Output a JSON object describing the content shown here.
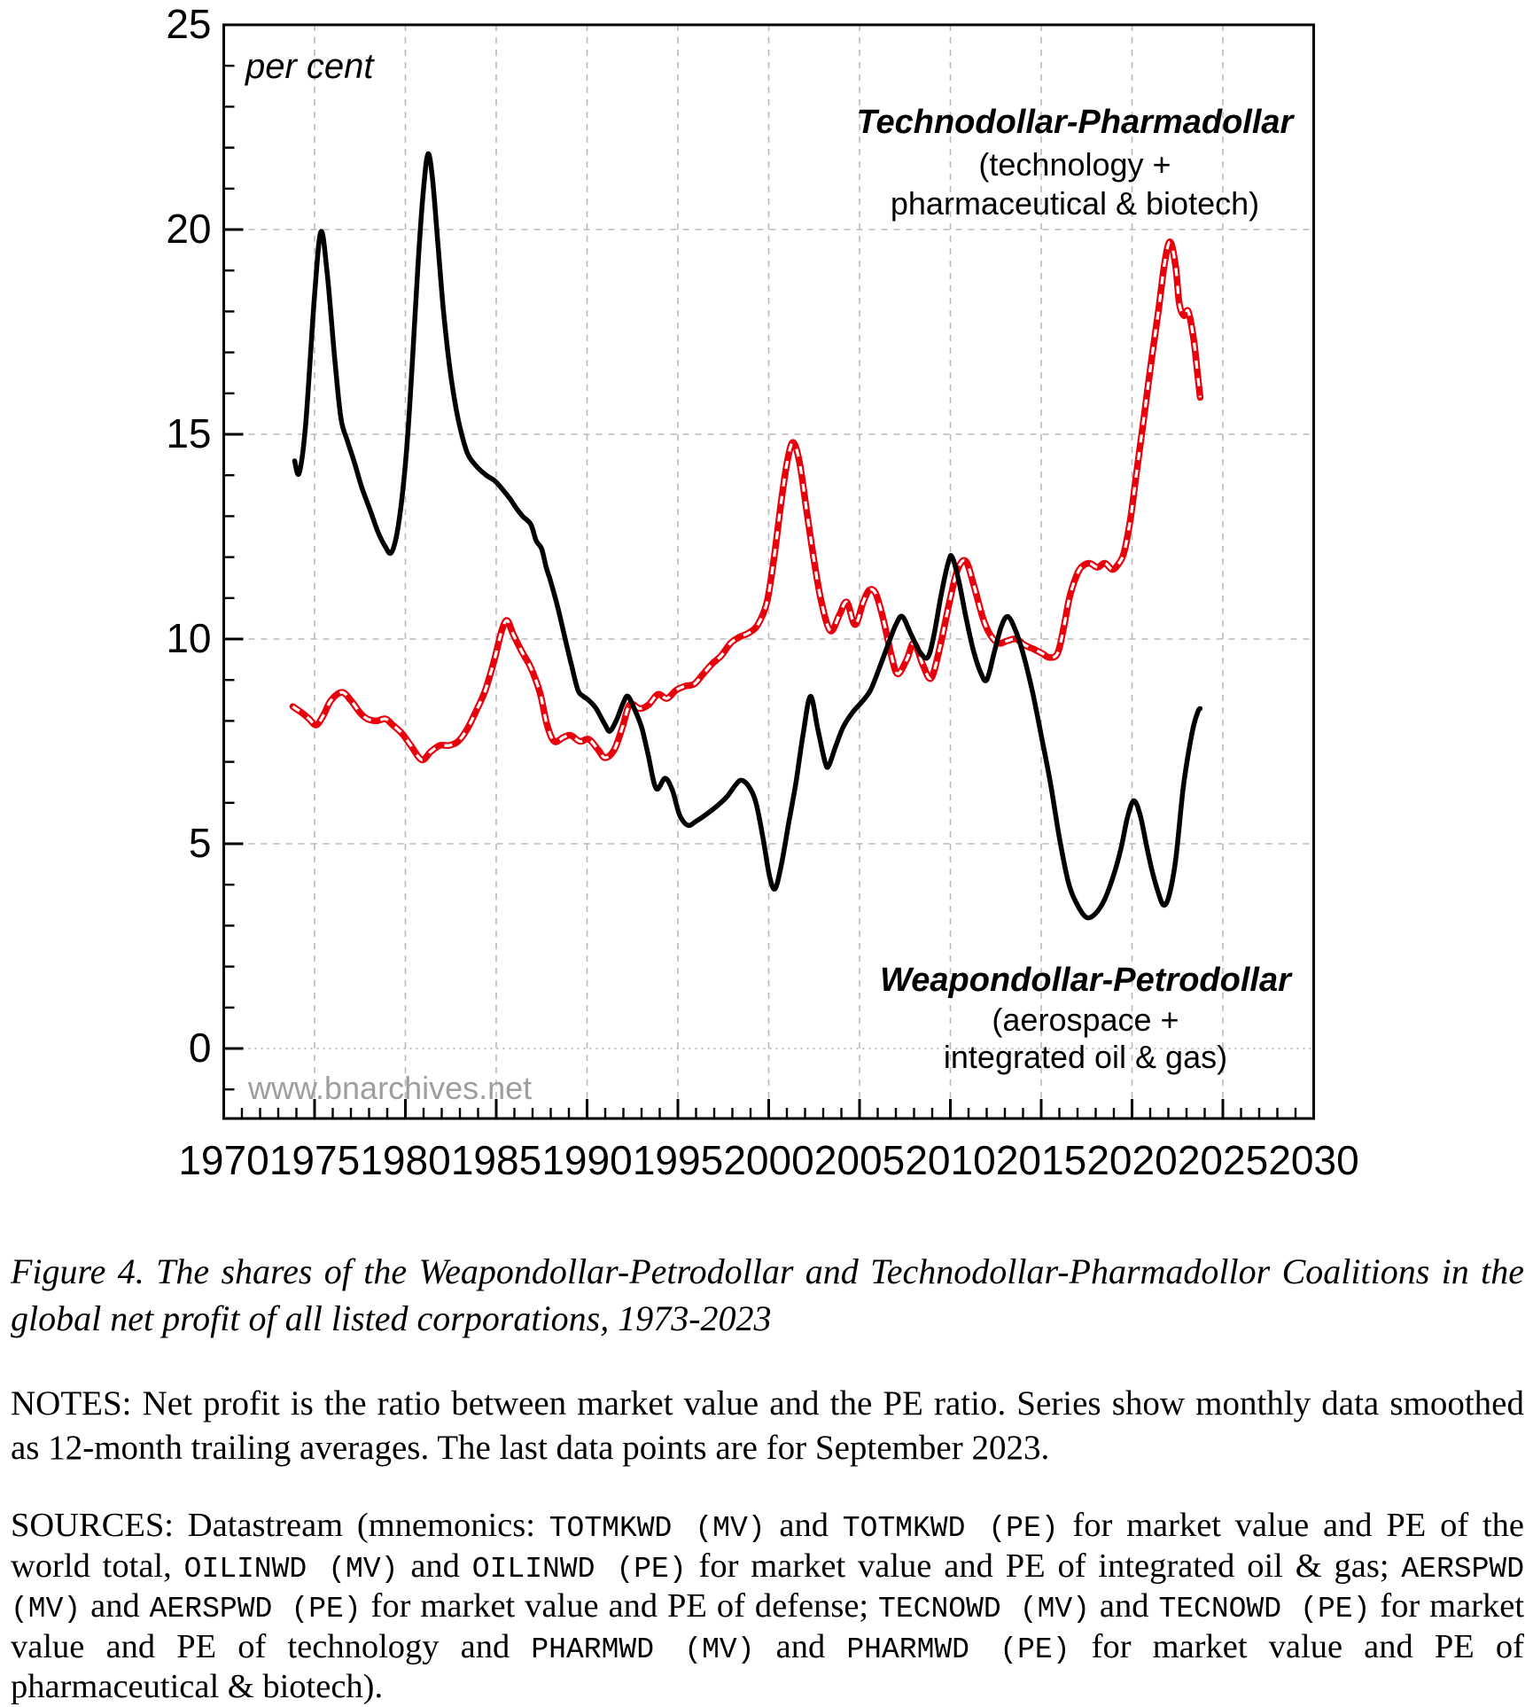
{
  "chart_data": {
    "type": "line",
    "unit_label": "per cent",
    "watermark": "www.bnarchives.net",
    "grid": true,
    "legend_position": "inline-annotations",
    "x_axis": {
      "min": 1970,
      "max": 2030,
      "major_tick_step": 5,
      "minor_tick_step": 1,
      "tick_labels": [
        "1970",
        "1975",
        "1980",
        "1985",
        "1990",
        "1995",
        "2000",
        "2005",
        "2010",
        "2015",
        "2020",
        "2025",
        "2030"
      ]
    },
    "y_axis": {
      "min": -1.7,
      "max": 25,
      "major_tick_step": 5,
      "minor_tick_step": 1,
      "tick_labels": [
        "0",
        "5",
        "10",
        "15",
        "20",
        "25"
      ],
      "tick_values": [
        0,
        5,
        10,
        15,
        20,
        25
      ]
    },
    "colors": {
      "weapondollar": "#000000",
      "technodollar": "#e8000b",
      "grid": "#b9b9b9",
      "zero_line": "#aaaaaa",
      "watermark": "#9e9e9e"
    },
    "annotations": [
      {
        "id": "technodollar-label",
        "x": 1213,
        "baselines": [
          150,
          198,
          242
        ],
        "lines": [
          "Technodollar-Pharmadollar",
          "(technology +",
          "pharmaceutical & biotech)"
        ]
      },
      {
        "id": "weapondollar-label",
        "x": 1225,
        "baselines": [
          1118,
          1163,
          1205
        ],
        "lines": [
          "Weapondollar-Petrodollar",
          "(aerospace +",
          "integrated oil & gas)"
        ]
      }
    ],
    "series": [
      {
        "name": "Weapondollar-Petrodollar (aerospace + integrated oil & gas)",
        "style": "solid-black",
        "points": [
          [
            1973.9,
            14.35
          ],
          [
            1974.15,
            14.05
          ],
          [
            1974.5,
            15.2
          ],
          [
            1975.0,
            18.4
          ],
          [
            1975.35,
            19.95
          ],
          [
            1975.7,
            18.9
          ],
          [
            1976.1,
            16.9
          ],
          [
            1976.45,
            15.4
          ],
          [
            1976.8,
            14.85
          ],
          [
            1977.2,
            14.3
          ],
          [
            1977.6,
            13.7
          ],
          [
            1978.1,
            13.1
          ],
          [
            1978.5,
            12.6
          ],
          [
            1978.9,
            12.25
          ],
          [
            1979.2,
            12.1
          ],
          [
            1979.5,
            12.5
          ],
          [
            1979.8,
            13.4
          ],
          [
            1980.1,
            14.8
          ],
          [
            1980.4,
            16.9
          ],
          [
            1980.7,
            19.2
          ],
          [
            1981.0,
            21.0
          ],
          [
            1981.25,
            21.85
          ],
          [
            1981.5,
            21.2
          ],
          [
            1981.8,
            19.6
          ],
          [
            1982.1,
            18.0
          ],
          [
            1982.45,
            16.6
          ],
          [
            1982.8,
            15.6
          ],
          [
            1983.1,
            15.0
          ],
          [
            1983.45,
            14.5
          ],
          [
            1983.95,
            14.2
          ],
          [
            1984.45,
            14.0
          ],
          [
            1984.95,
            13.85
          ],
          [
            1985.45,
            13.6
          ],
          [
            1985.8,
            13.4
          ],
          [
            1986.1,
            13.2
          ],
          [
            1986.45,
            13.0
          ],
          [
            1986.9,
            12.8
          ],
          [
            1987.2,
            12.4
          ],
          [
            1987.5,
            12.2
          ],
          [
            1987.75,
            11.75
          ],
          [
            1988.0,
            11.4
          ],
          [
            1988.4,
            10.75
          ],
          [
            1988.9,
            9.8
          ],
          [
            1989.15,
            9.35
          ],
          [
            1989.5,
            8.75
          ],
          [
            1989.8,
            8.6
          ],
          [
            1990.1,
            8.5
          ],
          [
            1990.5,
            8.3
          ],
          [
            1991.0,
            7.9
          ],
          [
            1991.25,
            7.75
          ],
          [
            1991.6,
            8.0
          ],
          [
            1992.0,
            8.45
          ],
          [
            1992.25,
            8.6
          ],
          [
            1992.6,
            8.3
          ],
          [
            1993.0,
            7.85
          ],
          [
            1993.35,
            7.2
          ],
          [
            1993.8,
            6.35
          ],
          [
            1994.3,
            6.6
          ],
          [
            1994.7,
            6.3
          ],
          [
            1995.1,
            5.7
          ],
          [
            1995.55,
            5.45
          ],
          [
            1996.0,
            5.55
          ],
          [
            1996.5,
            5.7
          ],
          [
            1997.1,
            5.9
          ],
          [
            1997.7,
            6.15
          ],
          [
            1998.2,
            6.45
          ],
          [
            1998.5,
            6.55
          ],
          [
            1998.9,
            6.4
          ],
          [
            1999.3,
            6.0
          ],
          [
            1999.7,
            5.1
          ],
          [
            2000.05,
            4.2
          ],
          [
            2000.35,
            3.9
          ],
          [
            2000.7,
            4.5
          ],
          [
            2001.1,
            5.5
          ],
          [
            2001.5,
            6.5
          ],
          [
            2001.9,
            7.7
          ],
          [
            2002.3,
            8.6
          ],
          [
            2002.7,
            7.8
          ],
          [
            2003.1,
            7.0
          ],
          [
            2003.3,
            6.9
          ],
          [
            2003.7,
            7.4
          ],
          [
            2004.1,
            7.85
          ],
          [
            2004.6,
            8.2
          ],
          [
            2005.1,
            8.45
          ],
          [
            2005.6,
            8.75
          ],
          [
            2006.1,
            9.3
          ],
          [
            2006.6,
            9.9
          ],
          [
            2007.0,
            10.35
          ],
          [
            2007.35,
            10.55
          ],
          [
            2007.8,
            10.15
          ],
          [
            2008.3,
            9.7
          ],
          [
            2008.75,
            9.55
          ],
          [
            2009.1,
            10.1
          ],
          [
            2009.5,
            11.1
          ],
          [
            2009.9,
            11.9
          ],
          [
            2010.1,
            12.0
          ],
          [
            2010.45,
            11.45
          ],
          [
            2010.85,
            10.55
          ],
          [
            2011.25,
            9.75
          ],
          [
            2011.65,
            9.2
          ],
          [
            2012.0,
            9.0
          ],
          [
            2012.4,
            9.65
          ],
          [
            2012.8,
            10.3
          ],
          [
            2013.15,
            10.55
          ],
          [
            2013.55,
            10.25
          ],
          [
            2014.0,
            9.65
          ],
          [
            2014.5,
            8.75
          ],
          [
            2015.0,
            7.65
          ],
          [
            2015.5,
            6.5
          ],
          [
            2016.0,
            5.15
          ],
          [
            2016.5,
            4.05
          ],
          [
            2017.0,
            3.5
          ],
          [
            2017.5,
            3.2
          ],
          [
            2018.0,
            3.3
          ],
          [
            2018.5,
            3.65
          ],
          [
            2019.0,
            4.25
          ],
          [
            2019.4,
            4.9
          ],
          [
            2019.75,
            5.65
          ],
          [
            2020.1,
            6.05
          ],
          [
            2020.45,
            5.7
          ],
          [
            2020.8,
            4.95
          ],
          [
            2021.1,
            4.35
          ],
          [
            2021.45,
            3.8
          ],
          [
            2021.75,
            3.5
          ],
          [
            2022.05,
            3.75
          ],
          [
            2022.4,
            4.6
          ],
          [
            2022.8,
            6.3
          ],
          [
            2023.1,
            7.2
          ],
          [
            2023.4,
            7.9
          ],
          [
            2023.65,
            8.25
          ],
          [
            2023.75,
            8.3
          ]
        ]
      },
      {
        "name": "Technodollar-Pharmadollar (technology + pharmaceutical & biotech)",
        "style": "red-white-dashed",
        "points": [
          [
            1973.8,
            8.35
          ],
          [
            1974.3,
            8.2
          ],
          [
            1974.7,
            8.05
          ],
          [
            1975.1,
            7.9
          ],
          [
            1975.5,
            8.15
          ],
          [
            1975.9,
            8.5
          ],
          [
            1976.5,
            8.7
          ],
          [
            1977.0,
            8.5
          ],
          [
            1977.5,
            8.2
          ],
          [
            1977.9,
            8.05
          ],
          [
            1978.4,
            8.0
          ],
          [
            1978.9,
            8.05
          ],
          [
            1979.3,
            7.9
          ],
          [
            1979.8,
            7.7
          ],
          [
            1980.3,
            7.4
          ],
          [
            1980.9,
            7.05
          ],
          [
            1981.4,
            7.25
          ],
          [
            1981.9,
            7.4
          ],
          [
            1982.4,
            7.4
          ],
          [
            1982.9,
            7.5
          ],
          [
            1983.4,
            7.8
          ],
          [
            1983.9,
            8.25
          ],
          [
            1984.4,
            8.75
          ],
          [
            1984.9,
            9.5
          ],
          [
            1985.3,
            10.2
          ],
          [
            1985.6,
            10.45
          ],
          [
            1985.95,
            10.1
          ],
          [
            1986.4,
            9.7
          ],
          [
            1986.9,
            9.3
          ],
          [
            1987.4,
            8.7
          ],
          [
            1987.8,
            7.9
          ],
          [
            1988.2,
            7.5
          ],
          [
            1988.7,
            7.6
          ],
          [
            1989.1,
            7.65
          ],
          [
            1989.6,
            7.5
          ],
          [
            1990.1,
            7.55
          ],
          [
            1990.6,
            7.3
          ],
          [
            1991.0,
            7.1
          ],
          [
            1991.5,
            7.3
          ],
          [
            1991.95,
            7.85
          ],
          [
            1992.35,
            8.4
          ],
          [
            1992.9,
            8.3
          ],
          [
            1993.4,
            8.4
          ],
          [
            1993.9,
            8.65
          ],
          [
            1994.4,
            8.55
          ],
          [
            1994.9,
            8.75
          ],
          [
            1995.4,
            8.85
          ],
          [
            1995.9,
            8.9
          ],
          [
            1996.4,
            9.15
          ],
          [
            1996.9,
            9.4
          ],
          [
            1997.4,
            9.6
          ],
          [
            1997.9,
            9.9
          ],
          [
            1998.4,
            10.05
          ],
          [
            1998.9,
            10.15
          ],
          [
            1999.4,
            10.35
          ],
          [
            1999.9,
            10.9
          ],
          [
            2000.3,
            12.0
          ],
          [
            2000.7,
            13.4
          ],
          [
            2001.05,
            14.4
          ],
          [
            2001.35,
            14.8
          ],
          [
            2001.7,
            14.3
          ],
          [
            2002.1,
            13.1
          ],
          [
            2002.5,
            11.9
          ],
          [
            2002.9,
            10.9
          ],
          [
            2003.4,
            10.2
          ],
          [
            2003.9,
            10.6
          ],
          [
            2004.3,
            10.9
          ],
          [
            2004.75,
            10.35
          ],
          [
            2005.2,
            10.9
          ],
          [
            2005.55,
            11.2
          ],
          [
            2005.9,
            11.1
          ],
          [
            2006.3,
            10.5
          ],
          [
            2006.75,
            9.6
          ],
          [
            2007.1,
            9.15
          ],
          [
            2007.6,
            9.5
          ],
          [
            2008.0,
            9.9
          ],
          [
            2008.5,
            9.35
          ],
          [
            2008.95,
            9.05
          ],
          [
            2009.45,
            9.85
          ],
          [
            2009.95,
            10.9
          ],
          [
            2010.4,
            11.7
          ],
          [
            2010.85,
            11.9
          ],
          [
            2011.3,
            11.3
          ],
          [
            2011.8,
            10.5
          ],
          [
            2012.2,
            10.1
          ],
          [
            2012.65,
            9.9
          ],
          [
            2013.1,
            9.95
          ],
          [
            2013.6,
            10.0
          ],
          [
            2014.1,
            9.85
          ],
          [
            2014.6,
            9.75
          ],
          [
            2015.05,
            9.65
          ],
          [
            2015.45,
            9.55
          ],
          [
            2015.9,
            9.65
          ],
          [
            2016.25,
            10.3
          ],
          [
            2016.55,
            11.0
          ],
          [
            2016.9,
            11.5
          ],
          [
            2017.2,
            11.75
          ],
          [
            2017.65,
            11.85
          ],
          [
            2018.1,
            11.75
          ],
          [
            2018.5,
            11.85
          ],
          [
            2018.9,
            11.7
          ],
          [
            2019.2,
            11.8
          ],
          [
            2019.55,
            12.1
          ],
          [
            2019.9,
            12.9
          ],
          [
            2020.2,
            13.9
          ],
          [
            2020.5,
            14.9
          ],
          [
            2020.8,
            15.9
          ],
          [
            2021.1,
            16.9
          ],
          [
            2021.45,
            18.0
          ],
          [
            2021.8,
            19.2
          ],
          [
            2022.1,
            19.7
          ],
          [
            2022.4,
            19.1
          ],
          [
            2022.6,
            18.2
          ],
          [
            2022.85,
            17.9
          ],
          [
            2023.1,
            18.0
          ],
          [
            2023.4,
            17.3
          ],
          [
            2023.6,
            16.5
          ],
          [
            2023.75,
            15.9
          ]
        ]
      }
    ]
  },
  "caption": {
    "text": "Figure 4. The shares of the Weapondollar-Petrodollar and Technodollar-Pharmadollor Coalitions in the global net profit of all listed corporations, 1973-2023"
  },
  "notes": {
    "text": "NOTES: Net profit is the ratio between market value and the PE ratio. Series show monthly data smoothed as 12-month trailing averages. The last data points are for September 2023."
  },
  "sources": {
    "segments": [
      {
        "t": "SOURCES: Datastream (mnemonics: ",
        "mono": false
      },
      {
        "t": "TOTMKWD (MV)",
        "mono": true
      },
      {
        "t": " and ",
        "mono": false
      },
      {
        "t": "TOTMKWD (PE)",
        "mono": true
      },
      {
        "t": " for market value and PE of the world total, ",
        "mono": false
      },
      {
        "t": "OILINWD (MV)",
        "mono": true
      },
      {
        "t": " and ",
        "mono": false
      },
      {
        "t": "OILINWD (PE)",
        "mono": true
      },
      {
        "t": " for market value and PE of integrated oil & gas; ",
        "mono": false
      },
      {
        "t": "AERSPWD (MV)",
        "mono": true
      },
      {
        "t": " and ",
        "mono": false
      },
      {
        "t": "AERSPWD (PE)",
        "mono": true
      },
      {
        "t": " for market value and PE of defense; ",
        "mono": false
      },
      {
        "t": "TECNOWD (MV)",
        "mono": true
      },
      {
        "t": " and ",
        "mono": false
      },
      {
        "t": "TECNOWD (PE)",
        "mono": true
      },
      {
        "t": " for market value and PE of technology and ",
        "mono": false
      },
      {
        "t": "PHARMWD (MV)",
        "mono": true
      },
      {
        "t": " and ",
        "mono": false
      },
      {
        "t": "PHARMWD (PE)",
        "mono": true
      },
      {
        "t": " for market value and PE of pharmaceutical & biotech).",
        "mono": false
      }
    ]
  }
}
